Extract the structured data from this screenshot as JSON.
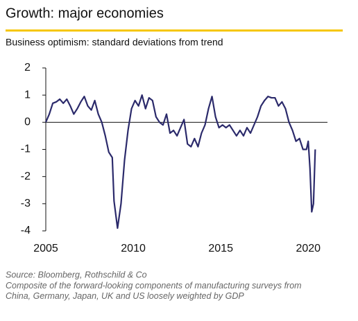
{
  "chart_data": {
    "type": "line",
    "title": "Growth: major economies",
    "subtitle": "Business optimism: standard deviations from trend",
    "source": "Source: Bloomberg, Rothschild & Co",
    "note": "Composite of the forward-looking components of manufacturing surveys from China, Germany, Japan, UK and US loosely weighted by GDP",
    "x": [
      2005.0,
      2005.2,
      2005.4,
      2005.6,
      2005.8,
      2006.0,
      2006.2,
      2006.4,
      2006.6,
      2006.8,
      2007.0,
      2007.2,
      2007.4,
      2007.6,
      2007.8,
      2008.0,
      2008.2,
      2008.4,
      2008.6,
      2008.8,
      2008.9,
      2009.1,
      2009.3,
      2009.5,
      2009.7,
      2009.9,
      2010.1,
      2010.3,
      2010.5,
      2010.7,
      2010.9,
      2011.1,
      2011.3,
      2011.5,
      2011.7,
      2011.9,
      2012.1,
      2012.3,
      2012.5,
      2012.7,
      2012.9,
      2013.1,
      2013.3,
      2013.5,
      2013.7,
      2013.9,
      2014.1,
      2014.3,
      2014.5,
      2014.7,
      2014.9,
      2015.1,
      2015.3,
      2015.5,
      2015.7,
      2015.9,
      2016.1,
      2016.3,
      2016.5,
      2016.7,
      2016.9,
      2017.1,
      2017.3,
      2017.5,
      2017.7,
      2017.9,
      2018.1,
      2018.3,
      2018.5,
      2018.7,
      2018.9,
      2019.1,
      2019.3,
      2019.5,
      2019.7,
      2019.9,
      2020.0,
      2020.1,
      2020.2,
      2020.3,
      2020.4
    ],
    "series": [
      {
        "color": "#2b2a6b",
        "values": [
          0.0,
          0.3,
          0.7,
          0.75,
          0.85,
          0.7,
          0.85,
          0.6,
          0.3,
          0.5,
          0.75,
          0.95,
          0.6,
          0.45,
          0.8,
          0.3,
          0.0,
          -0.5,
          -1.1,
          -1.3,
          -2.9,
          -3.9,
          -3.0,
          -1.4,
          -0.3,
          0.5,
          0.8,
          0.6,
          1.0,
          0.5,
          0.9,
          0.8,
          0.2,
          0.0,
          -0.1,
          0.3,
          -0.4,
          -0.3,
          -0.5,
          -0.2,
          0.1,
          -0.8,
          -0.9,
          -0.6,
          -0.9,
          -0.4,
          -0.1,
          0.5,
          0.95,
          0.2,
          -0.2,
          -0.1,
          -0.2,
          -0.1,
          -0.3,
          -0.5,
          -0.3,
          -0.5,
          -0.2,
          -0.4,
          -0.1,
          0.2,
          0.6,
          0.8,
          0.95,
          0.9,
          0.9,
          0.6,
          0.75,
          0.5,
          0.0,
          -0.3,
          -0.7,
          -0.6,
          -1.0,
          -1.0,
          -0.7,
          -1.7,
          -3.3,
          -3.0,
          -1.0
        ]
      }
    ],
    "xlim": [
      2005,
      2021.1
    ],
    "xticks": [
      2005,
      2010,
      2015,
      2020
    ],
    "ylim": [
      -4,
      2
    ],
    "yticks": [
      -4,
      -3,
      -2,
      -1,
      0,
      1,
      2
    ]
  }
}
